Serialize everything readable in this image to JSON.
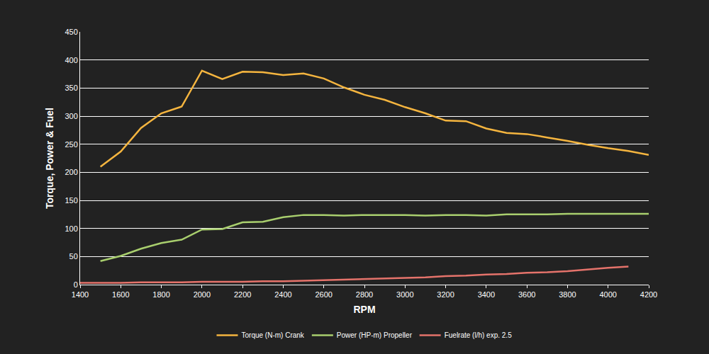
{
  "chart_data": {
    "type": "line",
    "x_label": "RPM",
    "y_label": "Torque, Power & Fuel",
    "x": [
      1400,
      1500,
      1600,
      1700,
      1800,
      1900,
      2000,
      2100,
      2200,
      2300,
      2400,
      2500,
      2600,
      2700,
      2800,
      2900,
      3000,
      3100,
      3200,
      3300,
      3400,
      3500,
      3600,
      3700,
      3800,
      3900,
      4000,
      4100,
      4200
    ],
    "series": [
      {
        "name": "Torque (N-m) Crank",
        "color": "#f5b53f",
        "values": [
          null,
          210,
          237,
          279,
          305,
          317,
          381,
          366,
          379,
          378,
          373,
          376,
          367,
          351,
          338,
          329,
          316,
          305,
          292,
          291,
          278,
          270,
          268,
          262,
          256,
          249,
          243,
          238,
          231
        ]
      },
      {
        "name": "Power (HP-m) Propeller",
        "color": "#a9cf6e",
        "values": [
          null,
          42,
          51,
          64,
          74,
          80,
          98,
          99,
          111,
          112,
          120,
          124,
          124,
          123,
          124,
          124,
          124,
          123,
          124,
          124,
          123,
          125,
          125,
          125,
          126,
          126,
          126,
          126,
          126
        ]
      },
      {
        "name": "Fuelrate (l/h) exp. 2.5",
        "color": "#e5736b",
        "values": [
          3,
          3,
          3,
          4,
          4,
          4,
          5,
          5,
          5,
          6,
          6,
          7,
          8,
          9,
          10,
          11,
          12,
          13,
          15,
          16,
          18,
          19,
          21,
          22,
          24,
          27,
          30,
          32,
          null
        ]
      }
    ],
    "xlim": [
      1400,
      4200
    ],
    "xticks": [
      1400,
      1600,
      1800,
      2000,
      2200,
      2400,
      2600,
      2800,
      3000,
      3200,
      3400,
      3600,
      3800,
      4000,
      4200
    ],
    "ylim": [
      0,
      450
    ],
    "yticks": [
      0,
      50,
      100,
      150,
      200,
      250,
      300,
      350,
      400,
      450
    ],
    "grid": true,
    "legend": "bottom"
  }
}
